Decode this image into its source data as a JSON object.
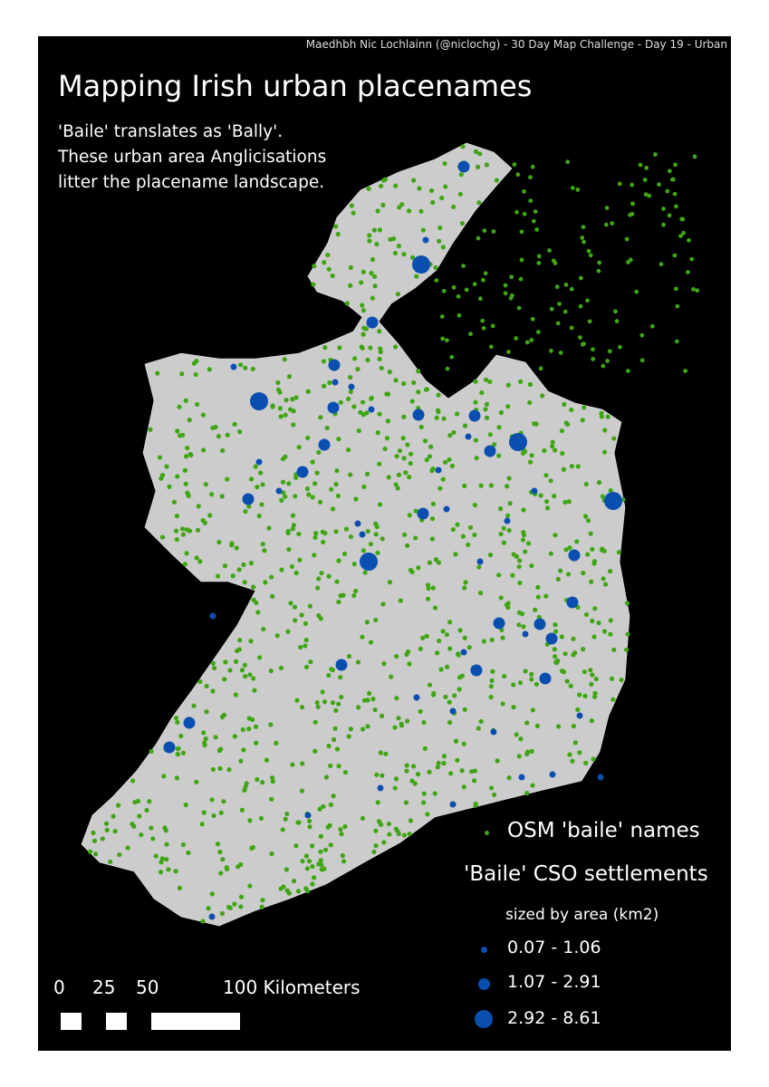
{
  "credit": "Maedhbh Nic Lochlainn (@niclochg) - 30 Day Map Challenge - Day 19 - Urban",
  "title": "Mapping Irish urban placenames",
  "subtitle": [
    "'Baile' translates as 'Bally'.",
    "These urban area Anglicisations",
    "litter the placename landscape."
  ],
  "legend": {
    "osm_label": "OSM 'baile' names",
    "cso_title": "'Baile' CSO settlements",
    "cso_subtitle": "sized by area (km2)",
    "classes": [
      "0.07 - 1.06",
      "1.07 - 2.91",
      "2.92 - 8.61"
    ]
  },
  "scalebar": {
    "labels": [
      "0",
      "25",
      "50",
      "100 Kilometers"
    ]
  },
  "colors": {
    "background": "#000000",
    "land": "#cccccc",
    "osm_points": "#3fa513",
    "cso_points": "#0a4fb0"
  }
}
